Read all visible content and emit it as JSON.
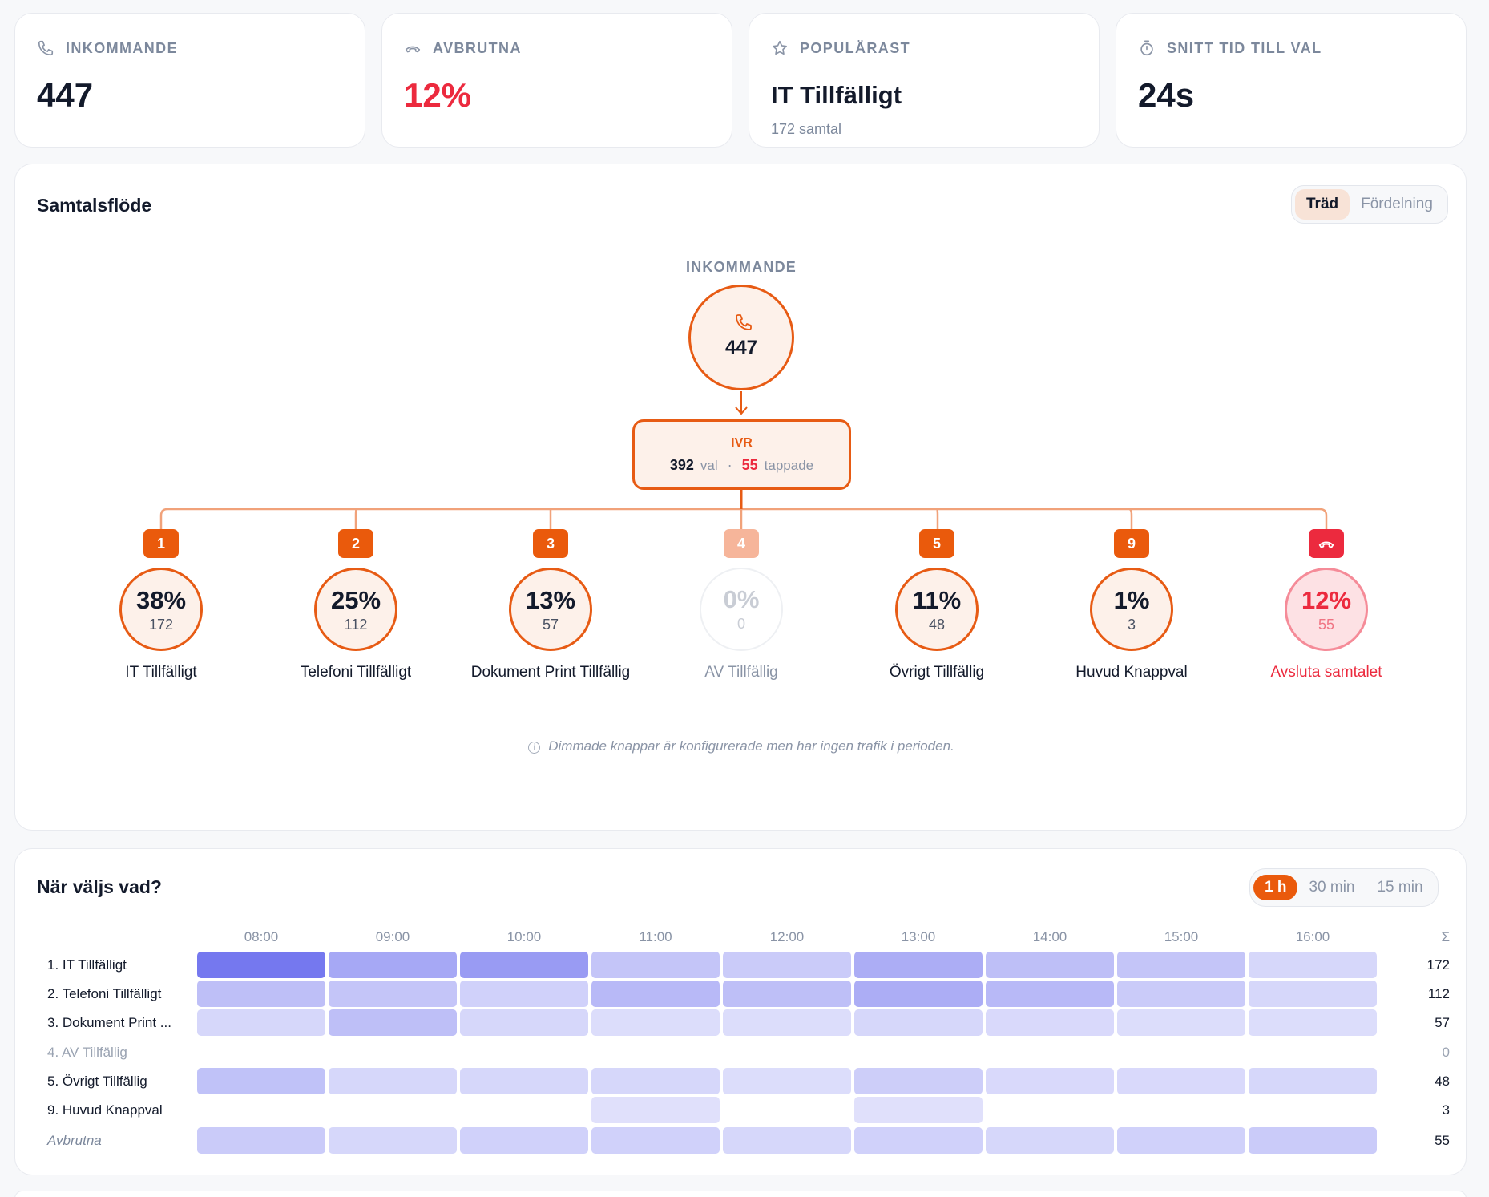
{
  "kpis": {
    "incoming": {
      "label": "INKOMMANDE",
      "value": "447",
      "icon": "phone-icon"
    },
    "dropped": {
      "label": "AVBRUTNA",
      "value": "12%",
      "icon": "phone-hangup-icon",
      "color": "#ec2a3e"
    },
    "popular": {
      "label": "POPULÄRAST",
      "value": "IT Tillfälligt",
      "sub": "172 samtal",
      "icon": "star-icon"
    },
    "avg_time": {
      "label": "SNITT TID TILL VAL",
      "value": "24s",
      "icon": "stopwatch-icon"
    }
  },
  "flow": {
    "title": "Samtalsflöde",
    "view_toggle": {
      "tree": "Träd",
      "distribution": "Fördelning",
      "selected": "Träd"
    },
    "root_caption": "INKOMMANDE",
    "root_value": "447",
    "ivr": {
      "title": "IVR",
      "choices": "392",
      "choices_label": "val",
      "separator": "·",
      "dropped": "55",
      "dropped_label": "tappade"
    },
    "options": [
      {
        "key": "1",
        "pct": "38%",
        "count": "172",
        "label": "IT Tillfälligt",
        "state": "active"
      },
      {
        "key": "2",
        "pct": "25%",
        "count": "112",
        "label": "Telefoni Tillfälligt",
        "state": "active"
      },
      {
        "key": "3",
        "pct": "13%",
        "count": "57",
        "label": "Dokument Print Tillfällig",
        "state": "active"
      },
      {
        "key": "4",
        "pct": "0%",
        "count": "0",
        "label": "AV Tillfällig",
        "state": "dim"
      },
      {
        "key": "5",
        "pct": "11%",
        "count": "48",
        "label": "Övrigt Tillfällig",
        "state": "active"
      },
      {
        "key": "9",
        "pct": "1%",
        "count": "3",
        "label": "Huvud Knappval",
        "state": "active"
      },
      {
        "key": "",
        "pct": "12%",
        "count": "55",
        "label": "Avsluta samtalet",
        "state": "end",
        "icon": "phone-hangup-icon"
      }
    ],
    "note": "Dimmade knappar är konfigurerade men har ingen trafik i perioden.",
    "accent": "#ea5a0c",
    "danger": "#ec2a3e"
  },
  "heatmap": {
    "title": "När väljs vad?",
    "intervals": [
      "1 h",
      "30 min",
      "15 min"
    ],
    "selected_interval": "1 h",
    "hours": [
      "08:00",
      "09:00",
      "10:00",
      "11:00",
      "12:00",
      "13:00",
      "14:00",
      "15:00",
      "16:00"
    ],
    "sigma": "Σ",
    "rows": [
      {
        "label": "1. IT Tillfälligt",
        "total": "172",
        "style": "normal",
        "values": [
          1.0,
          0.6,
          0.7,
          0.35,
          0.3,
          0.55,
          0.4,
          0.35,
          0.2
        ]
      },
      {
        "label": "2. Telefoni Tillfälligt",
        "total": "112",
        "style": "normal",
        "values": [
          0.4,
          0.35,
          0.25,
          0.45,
          0.4,
          0.55,
          0.45,
          0.3,
          0.2
        ]
      },
      {
        "label": "3. Dokument Print ...",
        "total": "57",
        "style": "normal",
        "values": [
          0.2,
          0.4,
          0.2,
          0.15,
          0.15,
          0.2,
          0.18,
          0.15,
          0.15
        ]
      },
      {
        "label": "4. AV Tillfällig",
        "total": "0",
        "style": "dim",
        "values": [
          0,
          0,
          0,
          0,
          0,
          0,
          0,
          0,
          0
        ]
      },
      {
        "label": "5. Övrigt Tillfällig",
        "total": "48",
        "style": "normal",
        "values": [
          0.38,
          0.2,
          0.2,
          0.2,
          0.15,
          0.28,
          0.18,
          0.18,
          0.2
        ]
      },
      {
        "label": "9. Huvud Knappval",
        "total": "3",
        "style": "normal",
        "values": [
          0,
          0,
          0,
          0.12,
          0,
          0.12,
          0,
          0,
          0
        ]
      },
      {
        "label": "Avbrutna",
        "total": "55",
        "style": "italic",
        "values": [
          0.3,
          0.2,
          0.25,
          0.25,
          0.2,
          0.25,
          0.2,
          0.25,
          0.3
        ]
      }
    ],
    "cell_color": "#7578ef"
  }
}
